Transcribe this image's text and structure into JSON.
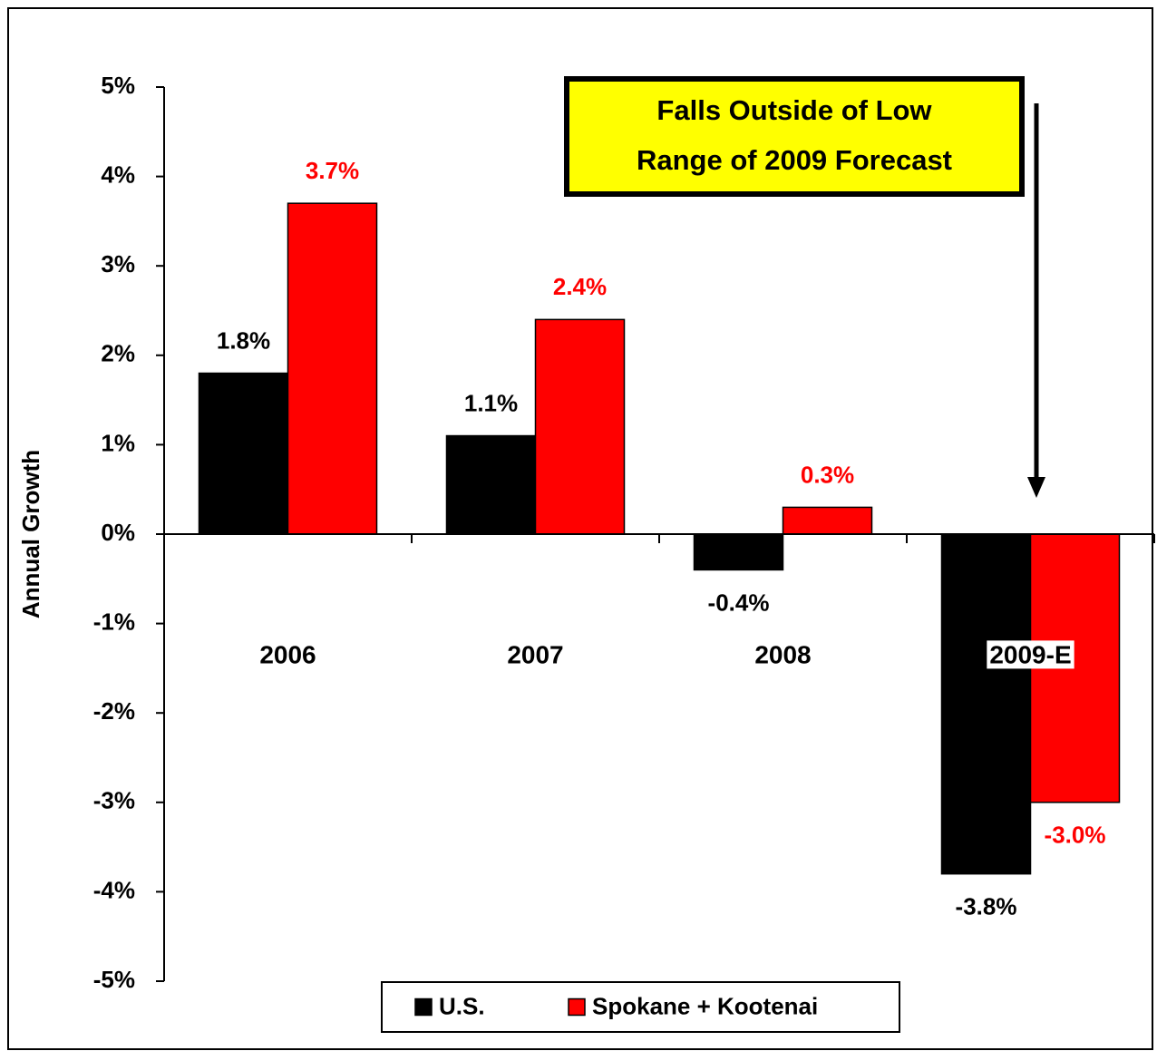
{
  "chart_data": {
    "type": "bar",
    "y_label": "Annual Growth",
    "categories": [
      "2006",
      "2007",
      "2008",
      "2009-E"
    ],
    "series": [
      {
        "name": "U.S.",
        "color": "#000000",
        "values": [
          1.8,
          1.1,
          -0.4,
          -3.8
        ],
        "value_labels": [
          "1.8%",
          "1.1%",
          "-0.4%",
          "-3.8%"
        ]
      },
      {
        "name": "Spokane + Kootenai",
        "color": "#ff0000",
        "values": [
          3.7,
          2.4,
          0.3,
          -3.0
        ],
        "value_labels": [
          "3.7%",
          "2.4%",
          "0.3%",
          "-3.0%"
        ]
      }
    ],
    "ylim": [
      -5,
      5
    ],
    "yticks": [
      {
        "value": -5,
        "label": "-5%"
      },
      {
        "value": -4,
        "label": "-4%"
      },
      {
        "value": -3,
        "label": "-3%"
      },
      {
        "value": -2,
        "label": "-2%"
      },
      {
        "value": -1,
        "label": "-1%"
      },
      {
        "value": 0,
        "label": "0%"
      },
      {
        "value": 1,
        "label": "1%"
      },
      {
        "value": 2,
        "label": "2%"
      },
      {
        "value": 3,
        "label": "3%"
      },
      {
        "value": 4,
        "label": "4%"
      },
      {
        "value": 5,
        "label": "5%"
      }
    ],
    "annotation": [
      "Falls Outside of Low",
      "Range of 2009 Forecast"
    ],
    "legend": "bottom"
  }
}
